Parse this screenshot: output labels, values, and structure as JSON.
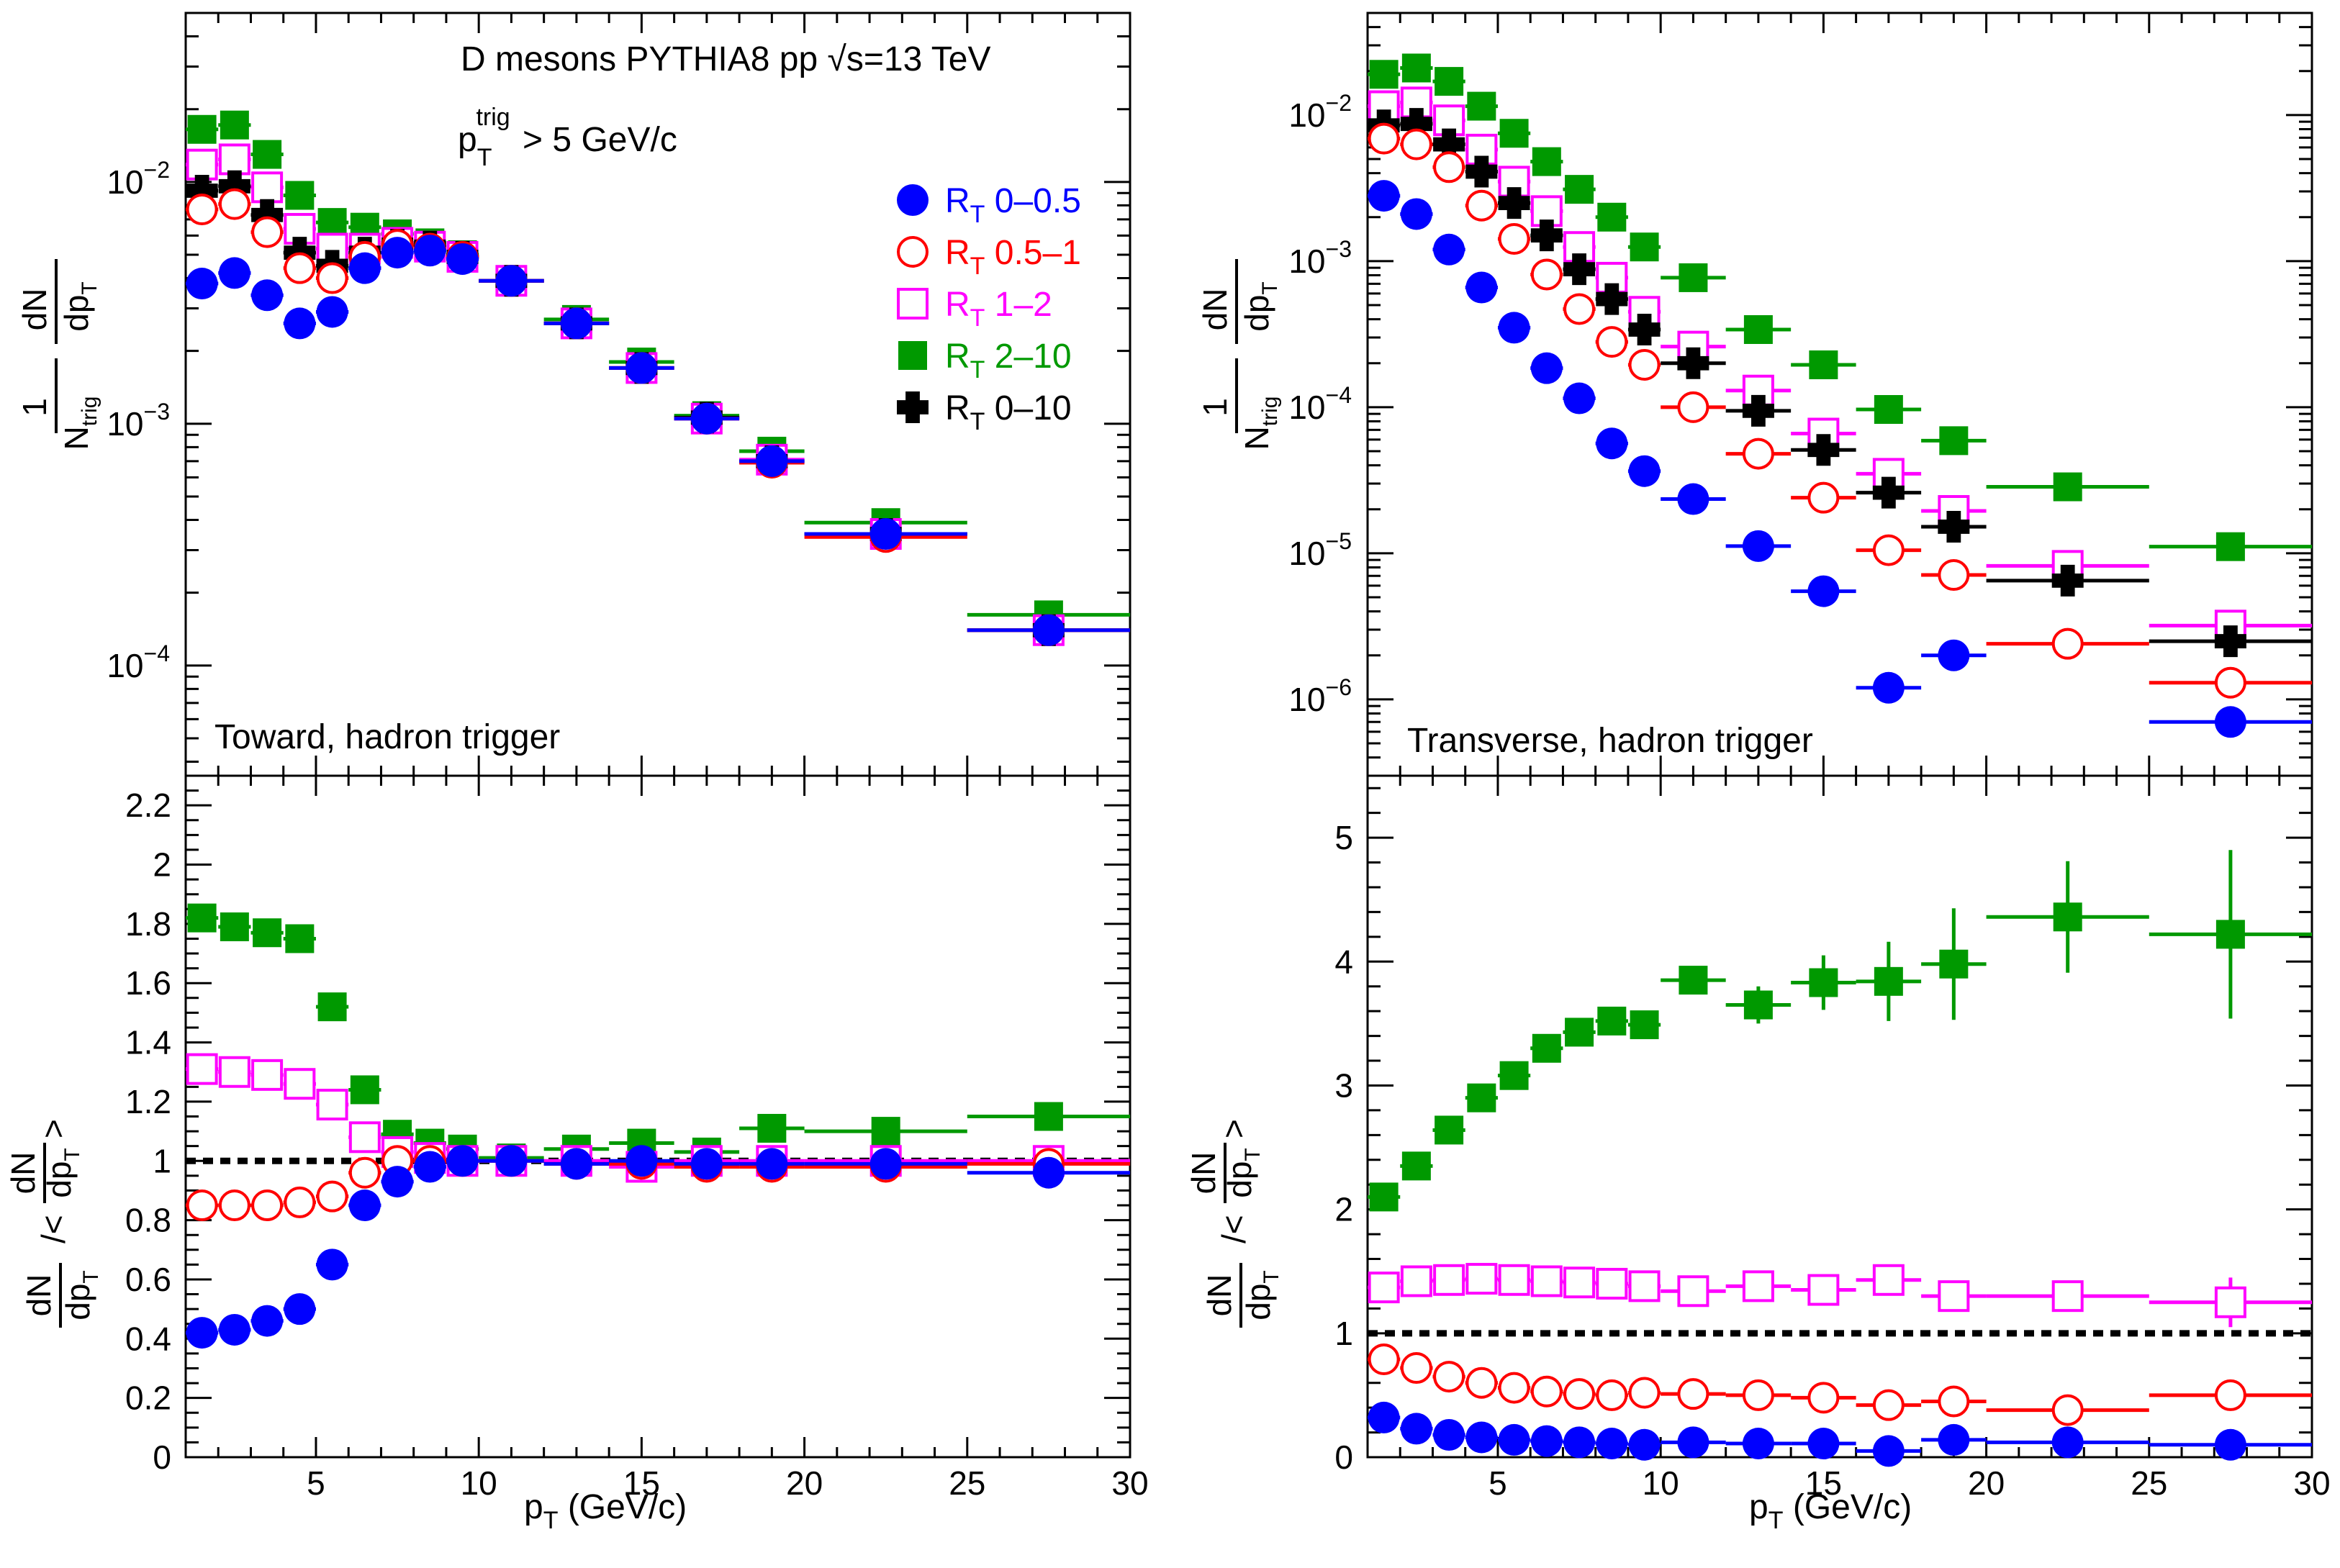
{
  "figure": {
    "title": "D mesons PYTHIA8 pp √s=13 TeV",
    "trigger_cut": "p_T^trig > 5 GeV/c",
    "reference_line_value": 1,
    "colors": {
      "rt_0_05": "#0000ff",
      "rt_05_1": "#ff0000",
      "rt_1_2": "#ff00ff",
      "rt_2_10": "#009900",
      "rt_0_10": "#000000",
      "reference_line": "#000000"
    }
  },
  "legend": [
    {
      "key": "rt_0_05",
      "label": "R_T 0–0.5",
      "marker": "filled-circle"
    },
    {
      "key": "rt_05_1",
      "label": "R_T 0.5–1",
      "marker": "open-circle"
    },
    {
      "key": "rt_1_2",
      "label": "R_T 1–2",
      "marker": "open-square"
    },
    {
      "key": "rt_2_10",
      "label": "R_T 2–10",
      "marker": "filled-square"
    },
    {
      "key": "rt_0_10",
      "label": "R_T 0–10",
      "marker": "cross"
    }
  ],
  "chart_data": [
    {
      "id": "toward_spectra",
      "type": "scatter",
      "yscale": "log",
      "annotation": "Toward, hadron trigger",
      "ylabel": "1/N_trig dN/dp_T",
      "xlabel": "",
      "xlim": [
        1,
        30
      ],
      "ylim": [
        3.5e-05,
        0.05
      ],
      "x_ticks": [
        5,
        10,
        15,
        20,
        25,
        30
      ],
      "y_ticks": [
        "10^-4",
        "10^-3",
        "10^-2"
      ],
      "x": [
        1.5,
        2.5,
        3.5,
        4.5,
        5.5,
        6.5,
        7.5,
        8.5,
        9.5,
        11,
        13,
        15,
        17,
        19,
        22.5,
        27.5
      ],
      "x_err": [
        0.5,
        0.5,
        0.5,
        0.5,
        0.5,
        0.5,
        0.5,
        0.5,
        0.5,
        1,
        1,
        1,
        1,
        1,
        2.5,
        2.5
      ],
      "series": [
        {
          "key": "rt_2_10",
          "name": "R_T 2–10",
          "values": [
            0.0165,
            0.0172,
            0.013,
            0.0088,
            0.0068,
            0.0065,
            0.0061,
            0.0056,
            0.005,
            0.0039,
            0.0027,
            0.0018,
            0.00108,
            0.00077,
            0.00039,
            0.000162
          ]
        },
        {
          "key": "rt_1_2",
          "name": "R_T 1–2",
          "values": [
            0.0118,
            0.0124,
            0.0095,
            0.0064,
            0.0053,
            0.0053,
            0.0056,
            0.0054,
            0.0049,
            0.0039,
            0.0026,
            0.0017,
            0.00105,
            0.00071,
            0.00035,
            0.00014
          ]
        },
        {
          "key": "rt_0_10",
          "name": "R_T 0–10",
          "values": [
            0.0092,
            0.0096,
            0.0073,
            0.0051,
            0.0045,
            0.0051,
            0.0055,
            0.0054,
            0.0049,
            0.0039,
            0.0026,
            0.0017,
            0.00106,
            0.0007,
            0.00035,
            0.00014
          ]
        },
        {
          "key": "rt_05_1",
          "name": "R_T 0.5–1",
          "values": [
            0.0077,
            0.0081,
            0.0062,
            0.0044,
            0.004,
            0.0049,
            0.0055,
            0.0053,
            0.0049,
            0.0039,
            0.0026,
            0.0017,
            0.00105,
            0.00069,
            0.00034,
            0.00014
          ]
        },
        {
          "key": "rt_0_05",
          "name": "R_T 0–0.5",
          "values": [
            0.0038,
            0.0042,
            0.0034,
            0.0026,
            0.0029,
            0.0044,
            0.0051,
            0.0052,
            0.0048,
            0.0039,
            0.0026,
            0.0017,
            0.00105,
            0.0007,
            0.00035,
            0.00014
          ]
        }
      ]
    },
    {
      "id": "transverse_spectra",
      "type": "scatter",
      "yscale": "log",
      "annotation": "Transverse, hadron trigger",
      "ylabel": "1/N_trig dN/dp_T",
      "xlabel": "",
      "xlim": [
        1,
        30
      ],
      "ylim": [
        3e-07,
        0.05
      ],
      "x_ticks": [
        5,
        10,
        15,
        20,
        25,
        30
      ],
      "y_ticks": [
        "10^-6",
        "10^-5",
        "10^-4",
        "10^-3",
        "10^-2"
      ],
      "x": [
        1.5,
        2.5,
        3.5,
        4.5,
        5.5,
        6.5,
        7.5,
        8.5,
        9.5,
        11,
        13,
        15,
        17,
        19,
        22.5,
        27.5
      ],
      "x_err": [
        0.5,
        0.5,
        0.5,
        0.5,
        0.5,
        0.5,
        0.5,
        0.5,
        0.5,
        1,
        1,
        1,
        1,
        1,
        2.5,
        2.5
      ],
      "series": [
        {
          "key": "rt_2_10",
          "name": "R_T 2–10",
          "values": [
            0.019,
            0.021,
            0.017,
            0.0115,
            0.0075,
            0.0048,
            0.0031,
            0.002,
            0.00125,
            0.00077,
            0.00034,
            0.000195,
            9.65e-05,
            5.9e-05,
            2.85e-05,
            1.11e-05
          ]
        },
        {
          "key": "rt_1_2",
          "name": "R_T 1–2",
          "values": [
            0.0115,
            0.0122,
            0.0092,
            0.0058,
            0.0035,
            0.0022,
            0.00125,
            0.00077,
            0.00045,
            0.00026,
            0.00013,
            6.6e-05,
            3.5e-05,
            1.95e-05,
            8.2e-06,
            3.2e-06
          ]
        },
        {
          "key": "rt_0_10",
          "name": "R_T 0–10",
          "values": [
            0.0085,
            0.0087,
            0.0063,
            0.0041,
            0.0025,
            0.0015,
            0.00088,
            0.00055,
            0.00034,
            0.0002,
            9.45e-05,
            5.1e-05,
            2.6e-05,
            1.52e-05,
            6.5e-06,
            2.5e-06
          ]
        },
        {
          "key": "rt_05_1",
          "name": "R_T 0.5–1",
          "values": [
            0.0069,
            0.0063,
            0.0044,
            0.0024,
            0.00142,
            0.00081,
            0.00047,
            0.00028,
            0.000195,
            0.0001,
            4.8e-05,
            2.4e-05,
            1.05e-05,
            7.1e-06,
            2.4e-06,
            1.3e-06
          ]
        },
        {
          "key": "rt_0_05",
          "name": "R_T 0–0.5",
          "values": [
            0.0028,
            0.0021,
            0.0012,
            0.00066,
            0.00035,
            0.000185,
            0.000115,
            5.65e-05,
            3.65e-05,
            2.35e-05,
            1.12e-05,
            5.5e-06,
            1.2e-06,
            2e-06,
            null,
            7e-07
          ]
        }
      ]
    },
    {
      "id": "toward_ratio",
      "type": "scatter",
      "yscale": "linear",
      "ylabel": "dN/dp_T / <dN/dp_T>",
      "xlabel": "p_T (GeV/c)",
      "xlim": [
        1,
        30
      ],
      "ylim": [
        0,
        2.3
      ],
      "x_ticks": [
        5,
        10,
        15,
        20,
        25,
        30
      ],
      "y_ticks": [
        0.2,
        0.4,
        0.6,
        0.8,
        1,
        1.2,
        1.4,
        1.6,
        1.8,
        2,
        2.2
      ],
      "x": [
        1.5,
        2.5,
        3.5,
        4.5,
        5.5,
        6.5,
        7.5,
        8.5,
        9.5,
        11,
        13,
        15,
        17,
        19,
        22.5,
        27.5
      ],
      "x_err": [
        0.5,
        0.5,
        0.5,
        0.5,
        0.5,
        0.5,
        0.5,
        0.5,
        0.5,
        1,
        1,
        1,
        1,
        1,
        2.5,
        2.5
      ],
      "series": [
        {
          "key": "rt_2_10",
          "name": "R_T 2–10",
          "values": [
            1.82,
            1.79,
            1.77,
            1.75,
            1.52,
            1.24,
            1.09,
            1.06,
            1.04,
            1.01,
            1.04,
            1.06,
            1.03,
            1.11,
            1.1,
            1.15
          ]
        },
        {
          "key": "rt_1_2",
          "name": "R_T 1–2",
          "values": [
            1.31,
            1.3,
            1.29,
            1.26,
            1.19,
            1.08,
            1.03,
            1.01,
            1.0,
            1.0,
            1.0,
            0.98,
            1.0,
            1.0,
            1.0,
            1.0
          ]
        },
        {
          "key": "rt_05_1",
          "name": "R_T 0.5–1",
          "values": [
            0.85,
            0.85,
            0.85,
            0.86,
            0.88,
            0.96,
            1.0,
            1.0,
            1.0,
            1.0,
            0.99,
            0.99,
            0.98,
            0.98,
            0.98,
            0.99
          ]
        },
        {
          "key": "rt_0_05",
          "name": "R_T 0–0.5",
          "values": [
            0.42,
            0.43,
            0.46,
            0.5,
            0.65,
            0.85,
            0.93,
            0.98,
            1.0,
            1.0,
            0.99,
            1.0,
            0.99,
            0.99,
            0.99,
            0.96
          ]
        }
      ]
    },
    {
      "id": "transverse_ratio",
      "type": "scatter",
      "yscale": "linear",
      "ylabel": "dN/dp_T / <dN/dp_T>",
      "xlabel": "p_T (GeV/c)",
      "xlim": [
        1,
        30
      ],
      "ylim": [
        0,
        5.5
      ],
      "x_ticks": [
        5,
        10,
        15,
        20,
        25,
        30
      ],
      "y_ticks": [
        1,
        2,
        3,
        4,
        5
      ],
      "x": [
        1.5,
        2.5,
        3.5,
        4.5,
        5.5,
        6.5,
        7.5,
        8.5,
        9.5,
        11,
        13,
        15,
        17,
        19,
        22.5,
        27.5
      ],
      "x_err": [
        0.5,
        0.5,
        0.5,
        0.5,
        0.5,
        0.5,
        0.5,
        0.5,
        0.5,
        1,
        1,
        1,
        1,
        1,
        2.5,
        2.5
      ],
      "series": [
        {
          "key": "rt_2_10",
          "name": "R_T 2–10",
          "values": [
            2.1,
            2.35,
            2.64,
            2.9,
            3.08,
            3.3,
            3.43,
            3.52,
            3.49,
            3.85,
            3.65,
            3.83,
            3.84,
            3.98,
            4.36,
            4.22
          ],
          "y_err": [
            0.05,
            0.05,
            0.05,
            0.05,
            0.05,
            0.05,
            0.05,
            0.06,
            0.06,
            0.1,
            0.15,
            0.22,
            0.32,
            0.45,
            0.45,
            0.68
          ]
        },
        {
          "key": "rt_1_2",
          "name": "R_T 1–2",
          "values": [
            1.37,
            1.42,
            1.43,
            1.44,
            1.43,
            1.42,
            1.41,
            1.4,
            1.38,
            1.34,
            1.38,
            1.35,
            1.43,
            1.3,
            1.3,
            1.25
          ],
          "y_err": [
            0,
            0,
            0,
            0,
            0,
            0,
            0,
            0,
            0,
            0,
            0,
            0,
            0,
            0.05,
            0.1,
            0.2
          ]
        },
        {
          "key": "rt_05_1",
          "name": "R_T 0.5–1",
          "values": [
            0.79,
            0.72,
            0.65,
            0.6,
            0.56,
            0.53,
            0.51,
            0.5,
            0.52,
            0.51,
            0.5,
            0.48,
            0.42,
            0.45,
            0.38,
            0.5
          ],
          "y_err": [
            0,
            0,
            0,
            0,
            0,
            0,
            0,
            0,
            0,
            0,
            0,
            0,
            0,
            0,
            0,
            0
          ]
        },
        {
          "key": "rt_0_05",
          "name": "R_T 0–0.5",
          "values": [
            0.32,
            0.23,
            0.18,
            0.16,
            0.14,
            0.13,
            0.12,
            0.11,
            0.1,
            0.12,
            0.11,
            0.11,
            0.05,
            0.14,
            0.12,
            0.1
          ],
          "y_err": [
            0,
            0,
            0,
            0,
            0,
            0,
            0,
            0,
            0,
            0,
            0,
            0,
            0,
            0,
            0,
            0
          ]
        }
      ]
    }
  ]
}
